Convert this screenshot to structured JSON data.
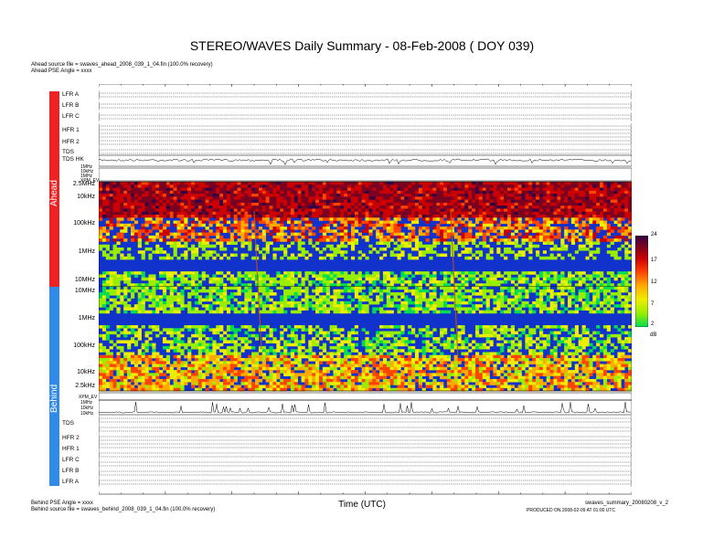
{
  "title": "STEREO/WAVES Daily Summary - 08-Feb-2008 ( DOY 039)",
  "ahead": {
    "source_file": "Ahead source file = swaves_ahead_2008_039_1_04.fin (100.0% recovery)",
    "pse_angle": "Ahead PSE Angle = xxxx",
    "bar_label": "Ahead",
    "rows": [
      "LFR A",
      "LFR B",
      "LFR C",
      "HFR 1",
      "HFR 2",
      "TDS",
      "TDS HK"
    ]
  },
  "behind": {
    "source_file": "Behind source file = swaves_behind_2008_039_1_04.fin (100.0% recovery)",
    "pse_angle": "Behind PSE Angle = xxxx",
    "bar_label": "Behind",
    "rows": [
      "TDS",
      "HFR 2",
      "HFR 1",
      "LFR C",
      "LFR B",
      "LFR A"
    ]
  },
  "xlabel": "Time (UTC)",
  "footer_right_1": "swaves_summary_20080208_v_2",
  "footer_right_2": "PRODUCED ON 2008-02-09 AT 01:00 UTC",
  "spectrogram_freq_labels_ahead": [
    "2.5MHz",
    "10kHz",
    "100kHz",
    "1MHz",
    "10MHz"
  ],
  "spectrogram_freq_labels_behind": [
    "10MHz",
    "1MHz",
    "100kHz",
    "10kHz",
    "2.5kHz"
  ],
  "aux_labels_ahead": [
    "1MHz",
    "10kHz",
    "1MHz",
    "XPM_EV"
  ],
  "aux_labels_behind": [
    "XPM_EV",
    "1MHz",
    "10kHz",
    "10kHz"
  ],
  "colorbar": {
    "ticks": [
      "24",
      "17",
      "12",
      "7",
      "2"
    ],
    "unit": "dB"
  },
  "chart_data": {
    "type": "heatmap",
    "title": "STEREO/WAVES Daily Summary - 08-Feb-2008 ( DOY 039)",
    "xlabel": "Time (UTC)",
    "ylabel": "",
    "x_range": [
      "00:00",
      "24:00"
    ],
    "y_ticks_ahead": [
      "2.5MHz",
      "10kHz",
      "100kHz",
      "1MHz",
      "10MHz"
    ],
    "y_ticks_behind": [
      "10MHz",
      "1MHz",
      "100kHz",
      "10kHz",
      "2.5kHz"
    ],
    "color_range": [
      2,
      24
    ],
    "color_unit": "dB",
    "colorscale": [
      "#00dd55",
      "#99ee00",
      "#eeee00",
      "#ffaa00",
      "#ff4400",
      "#cc0000",
      "#7a0022",
      "#330044"
    ],
    "background_color": "#1133cc"
  }
}
